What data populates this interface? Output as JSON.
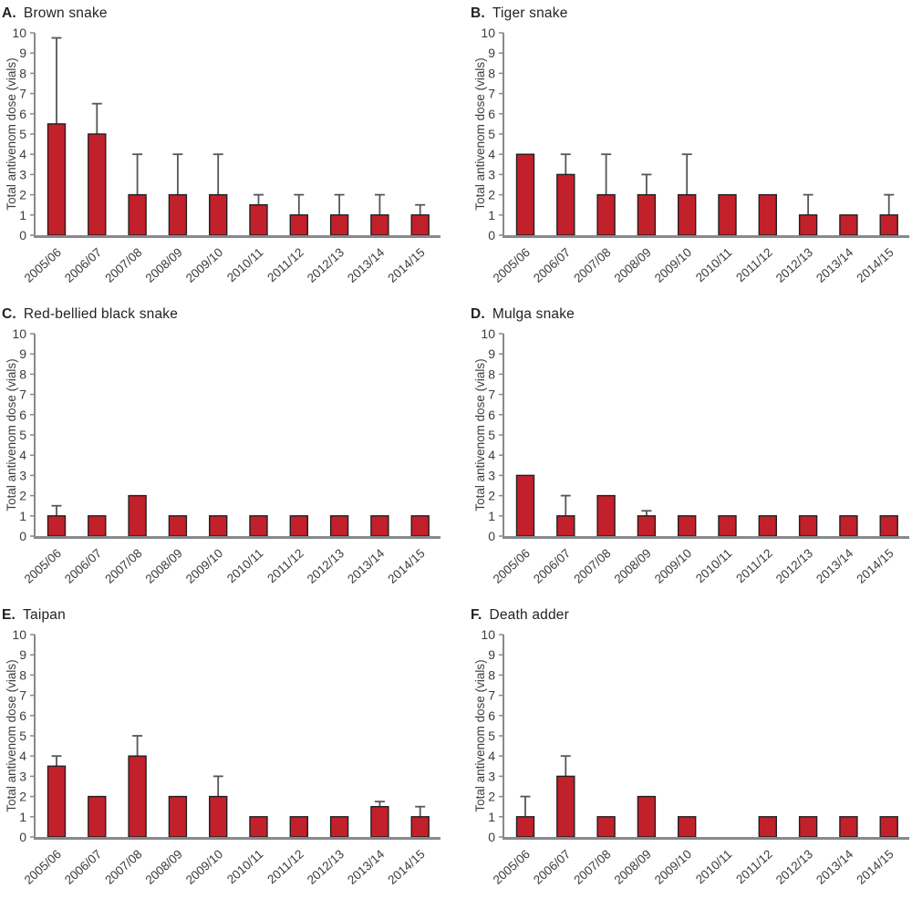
{
  "style": {
    "bar_fill": "#c2202a",
    "bar_stroke": "#231f20",
    "error_color": "#55565a",
    "axis_color": "#87898c",
    "tick_text": "#3b3c3e",
    "title_color": "#231f20"
  },
  "chart_data": [
    {
      "type": "bar",
      "panel_letter": "A.",
      "title": "Brown snake",
      "ylabel": "Total antivenom dose (vials)",
      "ylim": [
        0,
        10
      ],
      "yticks": [
        0,
        1,
        2,
        3,
        4,
        5,
        6,
        7,
        8,
        9,
        10
      ],
      "grid": false,
      "categories": [
        "2005/06",
        "2006/07",
        "2007/08",
        "2008/09",
        "2009/10",
        "2010/11",
        "2011/12",
        "2012/13",
        "2013/14",
        "2014/15"
      ],
      "values": [
        5.5,
        5,
        2,
        2,
        2,
        1.5,
        1,
        1,
        1,
        1
      ],
      "error_top": [
        9.75,
        6.5,
        4,
        4,
        4,
        2,
        2,
        2,
        2,
        1.5
      ]
    },
    {
      "type": "bar",
      "panel_letter": "B.",
      "title": "Tiger snake",
      "ylabel": "Total antivenom dose (vials)",
      "ylim": [
        0,
        10
      ],
      "yticks": [
        0,
        1,
        2,
        3,
        4,
        5,
        6,
        7,
        8,
        9,
        10
      ],
      "grid": false,
      "categories": [
        "2005/06",
        "2006/07",
        "2007/08",
        "2008/09",
        "2009/10",
        "2010/11",
        "2011/12",
        "2012/13",
        "2013/14",
        "2014/15"
      ],
      "values": [
        4,
        3,
        2,
        2,
        2,
        2,
        2,
        1,
        1,
        1
      ],
      "error_top": [
        null,
        4,
        4,
        3,
        4,
        null,
        null,
        2,
        null,
        2
      ]
    },
    {
      "type": "bar",
      "panel_letter": "C.",
      "title": "Red-bellied black snake",
      "ylabel": "Total antivenom dose (vials)",
      "ylim": [
        0,
        10
      ],
      "yticks": [
        0,
        1,
        2,
        3,
        4,
        5,
        6,
        7,
        8,
        9,
        10
      ],
      "grid": false,
      "categories": [
        "2005/06",
        "2006/07",
        "2007/08",
        "2008/09",
        "2009/10",
        "2010/11",
        "2011/12",
        "2012/13",
        "2013/14",
        "2014/15"
      ],
      "values": [
        1,
        1,
        2,
        1,
        1,
        1,
        1,
        1,
        1,
        1
      ],
      "error_top": [
        1.5,
        null,
        null,
        null,
        null,
        null,
        null,
        null,
        null,
        null
      ]
    },
    {
      "type": "bar",
      "panel_letter": "D.",
      "title": "Mulga snake",
      "ylabel": "Total antivenom dose (vials)",
      "ylim": [
        0,
        10
      ],
      "yticks": [
        0,
        1,
        2,
        3,
        4,
        5,
        6,
        7,
        8,
        9,
        10
      ],
      "grid": false,
      "categories": [
        "2005/06",
        "2006/07",
        "2007/08",
        "2008/09",
        "2009/10",
        "2010/11",
        "2011/12",
        "2012/13",
        "2013/14",
        "2014/15"
      ],
      "values": [
        3,
        1,
        2,
        1,
        1,
        1,
        1,
        1,
        1,
        1
      ],
      "error_top": [
        null,
        2,
        null,
        1.25,
        null,
        null,
        null,
        null,
        null,
        null
      ]
    },
    {
      "type": "bar",
      "panel_letter": "E.",
      "title": "Taipan",
      "ylabel": "Total antivenom dose (vials)",
      "ylim": [
        0,
        10
      ],
      "yticks": [
        0,
        1,
        2,
        3,
        4,
        5,
        6,
        7,
        8,
        9,
        10
      ],
      "grid": false,
      "categories": [
        "2005/06",
        "2006/07",
        "2007/08",
        "2008/09",
        "2009/10",
        "2010/11",
        "2011/12",
        "2012/13",
        "2013/14",
        "2014/15"
      ],
      "values": [
        3.5,
        2,
        4,
        2,
        2,
        1,
        1,
        1,
        1.5,
        1
      ],
      "error_top": [
        4,
        null,
        5,
        null,
        3,
        null,
        null,
        null,
        1.75,
        1.5
      ]
    },
    {
      "type": "bar",
      "panel_letter": "F.",
      "title": "Death adder",
      "ylabel": "Total antivenom dose (vials)",
      "ylim": [
        0,
        10
      ],
      "yticks": [
        0,
        1,
        2,
        3,
        4,
        5,
        6,
        7,
        8,
        9,
        10
      ],
      "grid": false,
      "categories": [
        "2005/06",
        "2006/07",
        "2007/08",
        "2008/09",
        "2009/10",
        "2010/11",
        "2011/12",
        "2012/13",
        "2013/14",
        "2014/15"
      ],
      "values": [
        1,
        3,
        1,
        2,
        1,
        0,
        1,
        1,
        1,
        1
      ],
      "error_top": [
        2,
        4,
        null,
        null,
        null,
        null,
        null,
        null,
        null,
        null
      ]
    }
  ]
}
